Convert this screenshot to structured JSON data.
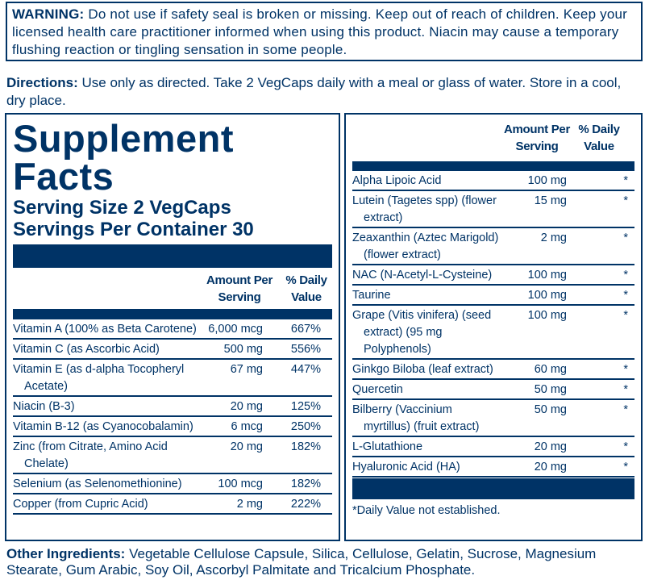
{
  "warning": {
    "label": "WARNING:",
    "text": " Do not use if safety seal is broken or missing. Keep out of reach of children. Keep your licensed health care practitioner informed when using this product. Niacin may cause a temporary flushing reaction or tingling sensation in some people."
  },
  "directions": {
    "label": "Directions:",
    "text": " Use only as directed. Take 2 VegCaps daily with a meal or glass of water. Store in a cool, dry place."
  },
  "facts": {
    "title1": "Supplement",
    "title2": "Facts",
    "serving_size": "Serving Size 2 VegCaps",
    "servings_per_container": "Servings Per Container 30",
    "col_amount1": "Amount Per",
    "col_amount2": "Serving",
    "col_dv1": "% Daily",
    "col_dv2": "Value",
    "left_rows": [
      {
        "name": "Vitamin A (100% as Beta Carotene)",
        "name2": "",
        "amount": "6,000 mcg",
        "dv": "667%"
      },
      {
        "name": "Vitamin C (as Ascorbic Acid)",
        "name2": "",
        "amount": "500 mg",
        "dv": "556%"
      },
      {
        "name": "Vitamin E (as d-alpha Tocopheryl",
        "name2": "Acetate)",
        "amount": "67 mg",
        "dv": "447%"
      },
      {
        "name": "Niacin (B-3)",
        "name2": "",
        "amount": "20 mg",
        "dv": "125%"
      },
      {
        "name": "Vitamin B-12 (as Cyanocobalamin)",
        "name2": "",
        "amount": "6 mcg",
        "dv": "250%"
      },
      {
        "name": "Zinc (from Citrate, Amino Acid",
        "name2": "Chelate)",
        "amount": "20 mg",
        "dv": "182%"
      },
      {
        "name": "Selenium (as Selenomethionine)",
        "name2": "",
        "amount": "100 mcg",
        "dv": "182%"
      },
      {
        "name": "Copper (from Cupric Acid)",
        "name2": "",
        "amount": "2 mg",
        "dv": "222%"
      }
    ],
    "right_rows": [
      {
        "name": "Alpha Lipoic Acid",
        "name2": "",
        "name3": "",
        "amount": "100 mg",
        "dv": "*"
      },
      {
        "name": "Lutein (Tagetes spp) (flower",
        "name2": "extract)",
        "name3": "",
        "amount": "15 mg",
        "dv": "*"
      },
      {
        "name": "Zeaxanthin (Aztec Marigold)",
        "name2": "(flower extract)",
        "name3": "",
        "amount": "2 mg",
        "dv": "*"
      },
      {
        "name": "NAC (N-Acetyl-L-Cysteine)",
        "name2": "",
        "name3": "",
        "amount": "100 mg",
        "dv": "*"
      },
      {
        "name": "Taurine",
        "name2": "",
        "name3": "",
        "amount": "100 mg",
        "dv": "*"
      },
      {
        "name": "Grape (Vitis vinifera) (seed",
        "name2": "extract) (95 mg",
        "name3": "Polyphenols)",
        "amount": "100 mg",
        "dv": "*"
      },
      {
        "name": "Ginkgo Biloba (leaf extract)",
        "name2": "",
        "name3": "",
        "amount": "60 mg",
        "dv": "*"
      },
      {
        "name": "Quercetin",
        "name2": "",
        "name3": "",
        "amount": "50 mg",
        "dv": "*"
      },
      {
        "name": "Bilberry (Vaccinium",
        "name2": "myrtillus) (fruit extract)",
        "name3": "",
        "amount": "50 mg",
        "dv": "*"
      },
      {
        "name": "L-Glutathione",
        "name2": "",
        "name3": "",
        "amount": "20 mg",
        "dv": "*"
      },
      {
        "name": "Hyaluronic Acid (HA)",
        "name2": "",
        "name3": "",
        "amount": "20 mg",
        "dv": "*"
      }
    ],
    "footnote": "*Daily Value not established."
  },
  "other": {
    "label": "Other Ingredients:",
    "text": " Vegetable Cellulose Capsule, Silica, Cellulose, Gelatin, Sucrose, Magnesium Stearate, Gum Arabic, Soy Oil, Ascorbyl Palmitate and Tricalcium Phosphate."
  },
  "colors": {
    "brand": "#003366"
  }
}
